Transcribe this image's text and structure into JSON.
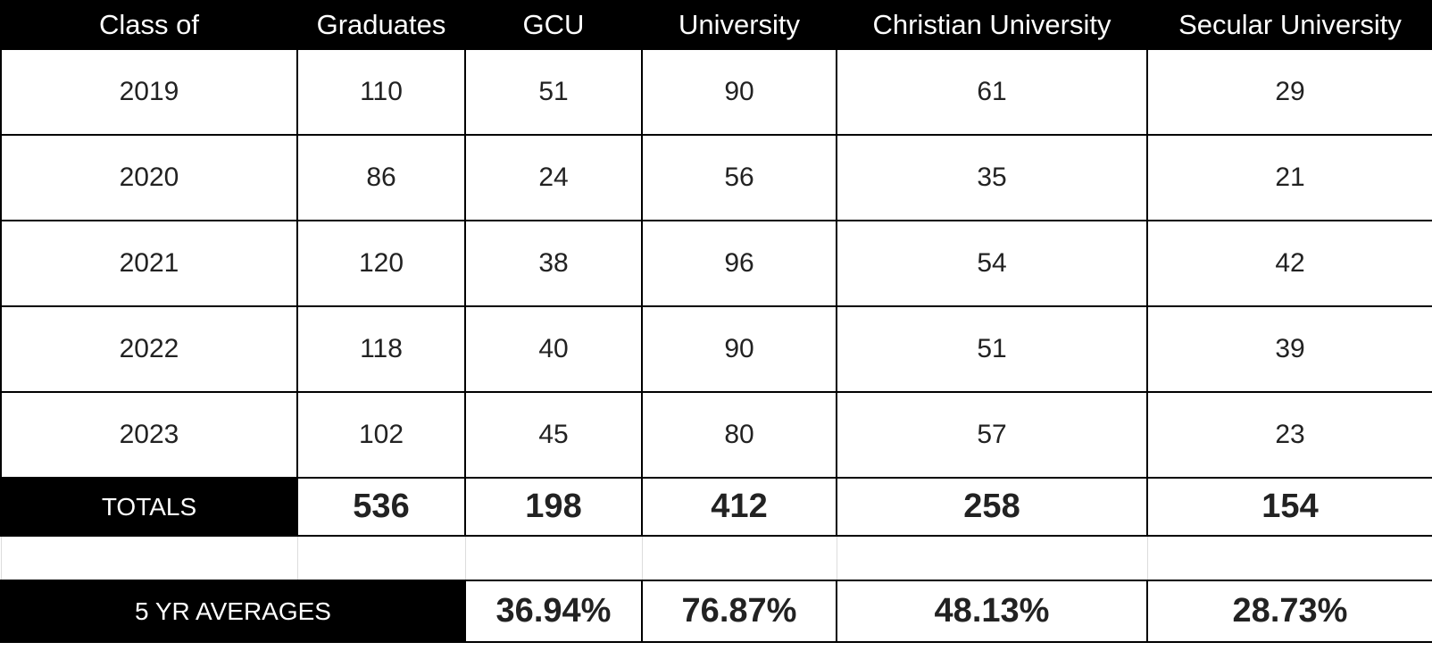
{
  "table": {
    "header": [
      "Class of",
      "Graduates",
      "GCU",
      "University",
      "Christian University",
      "Secular University"
    ],
    "rows": [
      [
        2019,
        110,
        51,
        90,
        61,
        29
      ],
      [
        2020,
        86,
        24,
        56,
        35,
        21
      ],
      [
        2021,
        120,
        38,
        96,
        54,
        42
      ],
      [
        2022,
        118,
        40,
        90,
        51,
        39
      ],
      [
        2023,
        102,
        45,
        80,
        57,
        23
      ]
    ],
    "totals": {
      "label": "TOTALS",
      "values": [
        536,
        198,
        412,
        258,
        154
      ]
    },
    "averages": {
      "label": "5 YR AVERAGES",
      "values": [
        "36.94%",
        "76.87%",
        "48.13%",
        "28.73%"
      ]
    }
  }
}
